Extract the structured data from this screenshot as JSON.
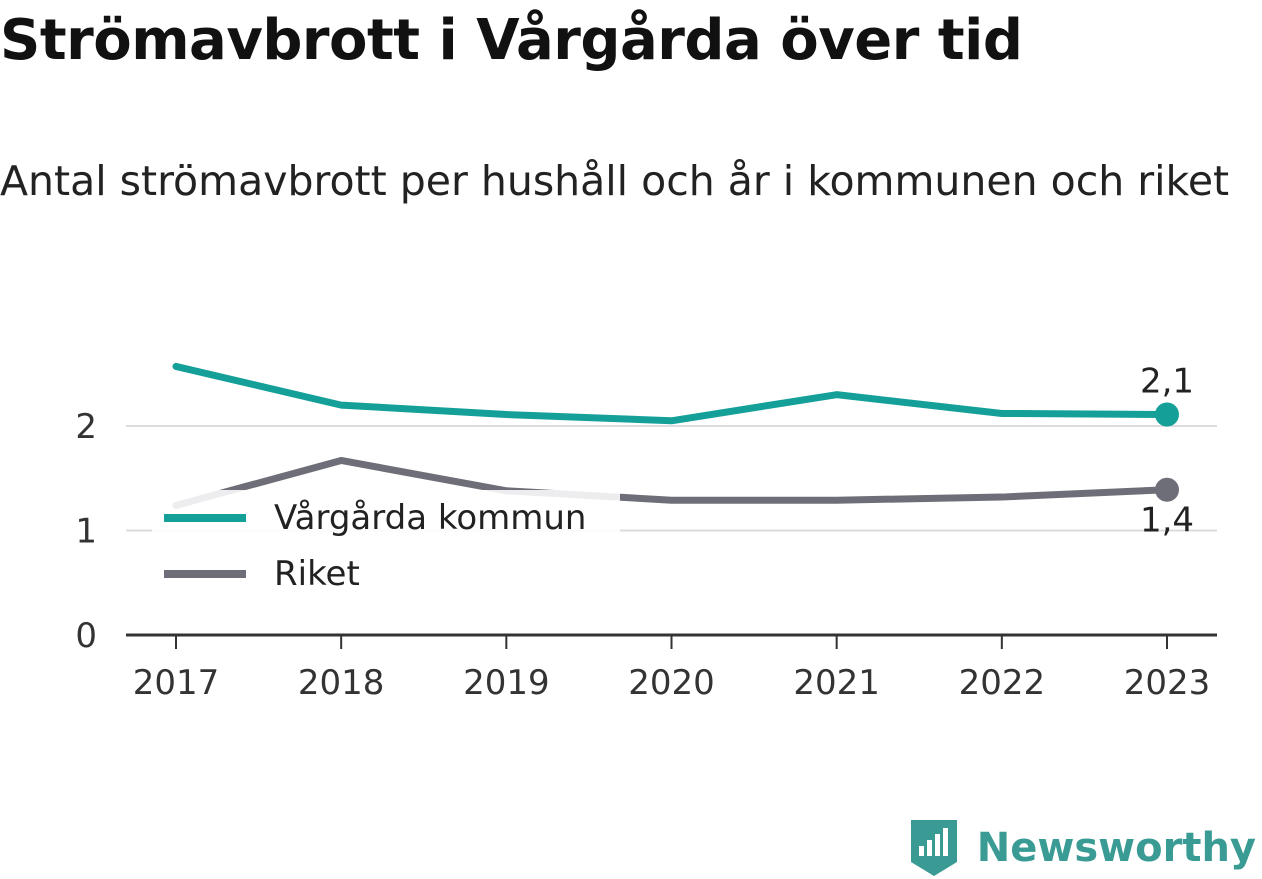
{
  "title": "Strömavbrott i Vårgårda över tid",
  "subtitle": "Antal strömavbrott per hushåll och år i kommunen och riket",
  "brand": {
    "name": "Newsworthy",
    "icon": "newsworthy-logo-icon",
    "color": "#3a9b94"
  },
  "chart_data": {
    "type": "line",
    "x": [
      "2017",
      "2018",
      "2019",
      "2020",
      "2021",
      "2022",
      "2023"
    ],
    "series": [
      {
        "name": "Vårgårda kommun",
        "color": "#14a098",
        "values": [
          2.57,
          2.2,
          2.11,
          2.05,
          2.3,
          2.12,
          2.11
        ],
        "end_label": "2,1"
      },
      {
        "name": "Riket",
        "color": "#6e6e78",
        "values": [
          1.24,
          1.67,
          1.38,
          1.29,
          1.29,
          1.32,
          1.39
        ],
        "end_label": "1,4"
      }
    ],
    "yticks": [
      "0",
      "1",
      "2"
    ],
    "ylim": [
      0,
      2.8
    ],
    "grid": true,
    "legend": "left-center"
  }
}
